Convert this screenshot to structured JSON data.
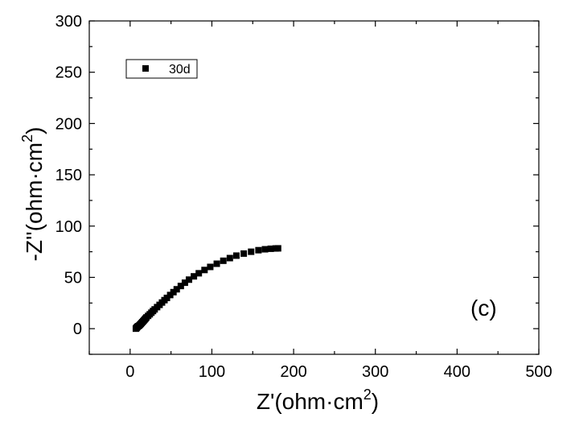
{
  "chart_data": {
    "type": "scatter",
    "xlabel": "Z'(ohm·cm",
    "xlabel_sup": "2",
    "xlabel_end": ")",
    "ylabel": "-Z''(ohm·cm",
    "ylabel_sup": "2",
    "ylabel_end": ")",
    "xlim": [
      -50,
      500
    ],
    "ylim": [
      -25,
      300
    ],
    "x_ticks": [
      0,
      100,
      200,
      300,
      400,
      500
    ],
    "y_ticks": [
      0,
      50,
      100,
      150,
      200,
      250,
      300
    ],
    "legend_position": "top-left",
    "annotation": "(c)",
    "series": [
      {
        "name": "30d",
        "marker": "square",
        "color": "#000000",
        "points": [
          [
            7,
            0
          ],
          [
            7.5,
            0.5
          ],
          [
            8,
            1
          ],
          [
            8.5,
            1.5
          ],
          [
            9,
            2
          ],
          [
            10,
            2.5
          ],
          [
            11,
            3
          ],
          [
            12,
            3.8
          ],
          [
            13,
            4.6
          ],
          [
            14,
            5.5
          ],
          [
            15,
            6.4
          ],
          [
            16,
            7.3
          ],
          [
            17,
            8.2
          ],
          [
            18,
            9.1
          ],
          [
            19,
            10
          ],
          [
            20,
            11
          ],
          [
            22,
            12.5
          ],
          [
            24,
            14
          ],
          [
            26,
            15.6
          ],
          [
            28,
            17.2
          ],
          [
            30,
            18.8
          ],
          [
            33,
            21
          ],
          [
            36,
            23.2
          ],
          [
            39,
            25.5
          ],
          [
            42,
            27.8
          ],
          [
            45,
            30
          ],
          [
            49,
            32.8
          ],
          [
            53,
            35.6
          ],
          [
            57,
            38.4
          ],
          [
            62,
            41.6
          ],
          [
            67,
            44.8
          ],
          [
            72,
            47.8
          ],
          [
            78,
            51
          ],
          [
            84,
            54
          ],
          [
            91,
            57.2
          ],
          [
            98,
            60.2
          ],
          [
            106,
            63.3
          ],
          [
            114,
            66.2
          ],
          [
            122,
            68.8
          ],
          [
            130,
            71.2
          ],
          [
            139,
            73.2
          ],
          [
            148,
            75
          ],
          [
            157,
            76.5
          ],
          [
            165,
            77.4
          ],
          [
            172,
            77.9
          ],
          [
            178,
            78.2
          ],
          [
            181,
            78.3
          ]
        ]
      }
    ]
  }
}
